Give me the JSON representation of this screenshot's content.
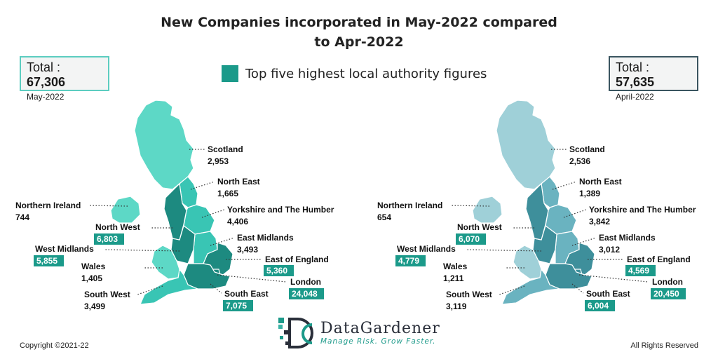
{
  "title_line1": "New Companies incorporated in May-2022 compared",
  "title_line2": "to Apr-2022",
  "legend_label": "Top five highest local authority figures",
  "colors": {
    "highlight": "#1b9a8a",
    "may_dark": "#1d8a80",
    "may_mid": "#39c5b4",
    "may_light": "#5dd8c6",
    "apr_dark": "#3e8f9b",
    "apr_mid": "#6ab3c0",
    "apr_light": "#9fd0d8"
  },
  "left_total": {
    "prefix": "Total : ",
    "value": "67,306",
    "period": "May-2022",
    "border": "#5ccdc0"
  },
  "right_total": {
    "prefix": "Total : ",
    "value": "57,635",
    "period": "April-2022",
    "border": "#3a5560"
  },
  "chart_data": [
    {
      "type": "map",
      "period": "May-2022",
      "regions": [
        {
          "name": "Scotland",
          "value": "2,953",
          "top_five": false
        },
        {
          "name": "North East",
          "value": "1,665",
          "top_five": false
        },
        {
          "name": "Yorkshire and The Humber",
          "value": "4,406",
          "top_five": false
        },
        {
          "name": "East Midlands",
          "value": "3,493",
          "top_five": false
        },
        {
          "name": "East of England",
          "value": "5,360",
          "top_five": true
        },
        {
          "name": "London",
          "value": "24,048",
          "top_five": true
        },
        {
          "name": "South East",
          "value": "7,075",
          "top_five": true
        },
        {
          "name": "South West",
          "value": "3,499",
          "top_five": false
        },
        {
          "name": "Wales",
          "value": "1,405",
          "top_five": false
        },
        {
          "name": "West Midlands",
          "value": "5,855",
          "top_five": true
        },
        {
          "name": "North West",
          "value": "6,803",
          "top_five": true
        },
        {
          "name": "Northern Ireland",
          "value": "744",
          "top_five": false
        }
      ]
    },
    {
      "type": "map",
      "period": "April-2022",
      "regions": [
        {
          "name": "Scotland",
          "value": "2,536",
          "top_five": false
        },
        {
          "name": "North East",
          "value": "1,389",
          "top_five": false
        },
        {
          "name": "Yorkshire and The Humber",
          "value": "3,842",
          "top_five": false
        },
        {
          "name": "East Midlands",
          "value": "3,012",
          "top_five": false
        },
        {
          "name": "East of England",
          "value": "4,569",
          "top_five": true
        },
        {
          "name": "London",
          "value": "20,450",
          "top_five": true
        },
        {
          "name": "South East",
          "value": "6,004",
          "top_five": true
        },
        {
          "name": "South West",
          "value": "3,119",
          "top_five": false
        },
        {
          "name": "Wales",
          "value": "1,211",
          "top_five": false
        },
        {
          "name": "West Midlands",
          "value": "4,779",
          "top_five": true
        },
        {
          "name": "North West",
          "value": "6,070",
          "top_five": true
        },
        {
          "name": "Northern Ireland",
          "value": "654",
          "top_five": false
        }
      ]
    }
  ],
  "logo": {
    "name": "DataGardener",
    "tagline": "Manage Risk. Grow Faster."
  },
  "footer_left": "Copyright ©2021-22",
  "footer_right": "All Rights Reserved"
}
